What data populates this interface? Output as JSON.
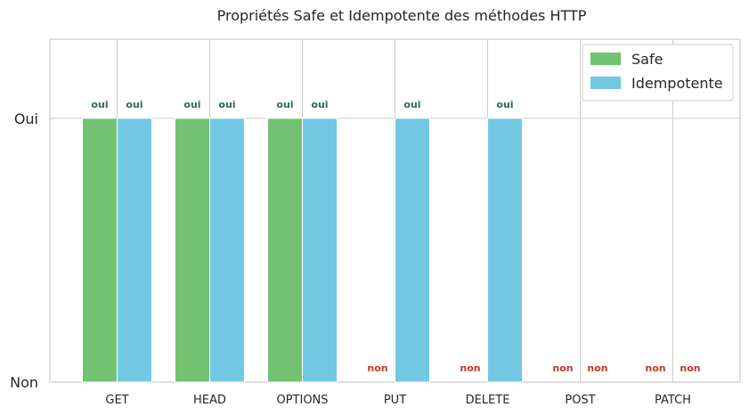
{
  "chart_data": {
    "type": "bar",
    "title": "Propriétés Safe et Idempotente des méthodes HTTP",
    "categories": [
      "GET",
      "HEAD",
      "OPTIONS",
      "PUT",
      "DELETE",
      "POST",
      "PATCH"
    ],
    "y_ticks": [
      "Non",
      "Oui"
    ],
    "ylim": [
      0,
      1.3
    ],
    "grid": true,
    "legend_position": "top-right",
    "series": [
      {
        "name": "Safe",
        "color": "#72c272",
        "values": [
          1,
          1,
          1,
          0,
          0,
          0,
          0
        ],
        "labels": [
          "oui",
          "oui",
          "oui",
          "non",
          "non",
          "non",
          "non"
        ]
      },
      {
        "name": "Idempotente",
        "color": "#72c8e2",
        "values": [
          1,
          1,
          1,
          1,
          1,
          0,
          0
        ],
        "labels": [
          "oui",
          "oui",
          "oui",
          "oui",
          "oui",
          "non",
          "non"
        ]
      }
    ],
    "label_colors": {
      "yes": "#2e6b4f",
      "no": "#c0392b"
    }
  }
}
